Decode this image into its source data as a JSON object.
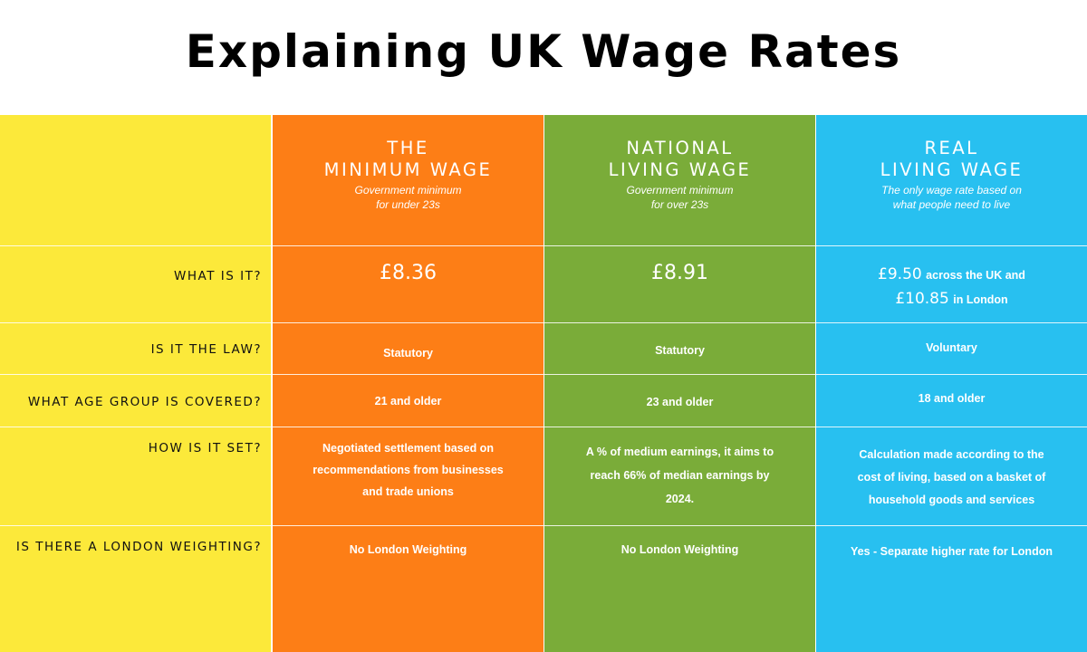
{
  "title": "Explaining UK Wage Rates",
  "colors": {
    "labels": "#fce93a",
    "minimum_wage": "#fd7e16",
    "national_living_wage": "#7aac39",
    "real_living_wage": "#28c0f0"
  },
  "row_labels": {
    "what": "WHAT IS IT?",
    "law": "IS IT THE LAW?",
    "age": "WHAT AGE GROUP IS COVERED?",
    "set": "HOW IS IT SET?",
    "london": "IS THERE A LONDON WEIGHTING?"
  },
  "columns": {
    "minimum": {
      "name_line1": "THE",
      "name_line2": "MINIMUM WAGE",
      "sub_line1": "Government minimum",
      "sub_line2": "for under 23s",
      "what": "£8.36",
      "law": "Statutory",
      "age": "21 and older",
      "set_line1": "Negotiated settlement based on",
      "set_line2": "recommendations from businesses",
      "set_line3": "and trade unions",
      "london": "No London Weighting"
    },
    "national": {
      "name_line1": "NATIONAL",
      "name_line2": "LIVING WAGE",
      "sub_line1": "Government minimum",
      "sub_line2": "for over 23s",
      "what": "£8.91",
      "law": "Statutory",
      "age": "23 and older",
      "set_line1": "A % of medium earnings, it aims to",
      "set_line2": "reach 66% of median earnings by",
      "set_line3": "2024.",
      "london": "No London Weighting"
    },
    "real": {
      "name_line1": "REAL",
      "name_line2": "LIVING WAGE",
      "sub_line1": "The only wage rate based on",
      "sub_line2": "what people need to live",
      "what_amount1": "£9.50",
      "what_text1": "across the UK and",
      "what_amount2": "£10.85",
      "what_text2": "in London",
      "law": "Voluntary",
      "age": "18 and older",
      "set_line1": "Calculation made according to the",
      "set_line2": "cost of living, based on a basket of",
      "set_line3": "household goods and services",
      "london": "Yes - Separate higher rate for London"
    }
  }
}
